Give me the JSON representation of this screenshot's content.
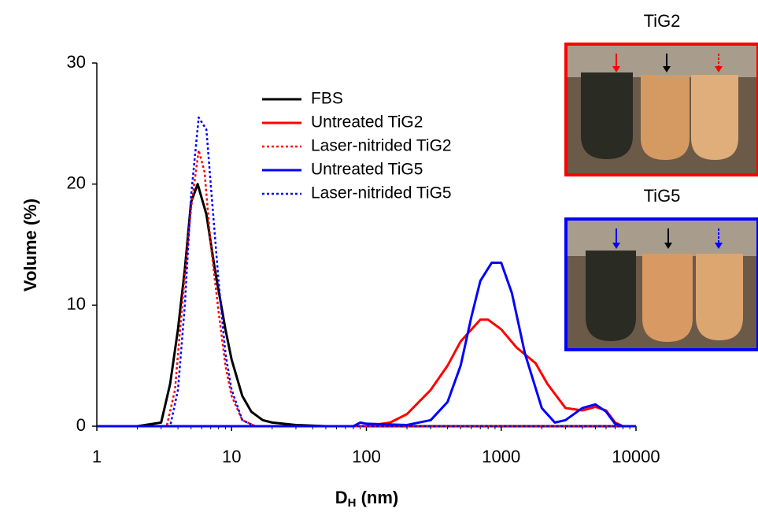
{
  "chart_data": {
    "type": "line",
    "x_label": [
      "D",
      "H",
      " (nm)"
    ],
    "y_label": "Volume (%)",
    "xscale": "log",
    "xlim": [
      1,
      10000
    ],
    "xticks": [
      1,
      10,
      100,
      1000,
      10000
    ],
    "ylim": [
      0,
      30
    ],
    "yticks": [
      0,
      10,
      20,
      30
    ],
    "legend": "top",
    "series": [
      {
        "name": "FBS",
        "color": "#000000",
        "dash": false,
        "x": [
          1,
          2,
          3,
          3.5,
          4,
          4.5,
          5,
          5.6,
          6.5,
          7.5,
          9,
          10,
          12,
          14,
          17,
          20,
          30,
          50,
          100,
          10000
        ],
        "values": [
          0,
          0,
          0.3,
          3.5,
          8,
          13,
          18.5,
          20,
          17.5,
          13,
          8,
          5.5,
          2.5,
          1.2,
          0.5,
          0.3,
          0.1,
          0,
          0,
          0
        ]
      },
      {
        "name": "Untreated TiG2",
        "color": "#ff0000",
        "dash": false,
        "x": [
          1,
          100,
          150,
          200,
          300,
          400,
          500,
          700,
          800,
          1000,
          1300,
          1800,
          2200,
          3000,
          4000,
          5000,
          6000,
          7000,
          8000,
          10000
        ],
        "values": [
          0,
          0,
          0.3,
          1,
          3,
          5,
          7,
          8.8,
          8.8,
          8,
          6.5,
          5.2,
          3.5,
          1.5,
          1.3,
          1.6,
          1.3,
          0.3,
          0,
          0
        ]
      },
      {
        "name": "Laser-nitrided TiG2",
        "color": "#ff0000",
        "dash": true,
        "x": [
          1,
          3.3,
          3.8,
          4.3,
          5,
          5.7,
          6.3,
          7,
          8,
          9,
          10,
          12,
          15,
          10000
        ],
        "values": [
          0,
          0,
          3,
          10,
          18,
          22.8,
          21,
          15,
          9.5,
          5,
          2.5,
          0.5,
          0,
          0
        ]
      },
      {
        "name": "Untreated TiG5",
        "color": "#0000ff",
        "dash": false,
        "x": [
          1,
          80,
          90,
          100,
          200,
          300,
          400,
          500,
          600,
          700,
          850,
          1000,
          1200,
          1500,
          2000,
          2500,
          3000,
          4000,
          5000,
          6000,
          7000,
          8000,
          10000
        ],
        "values": [
          0,
          0,
          0.3,
          0.2,
          0.1,
          0.5,
          2,
          5,
          9,
          12,
          13.5,
          13.5,
          11,
          6,
          1.5,
          0.3,
          0.5,
          1.5,
          1.8,
          1.2,
          0.2,
          0,
          0
        ]
      },
      {
        "name": "Laser-nitrided TiG5",
        "color": "#0000ff",
        "dash": true,
        "x": [
          1,
          3.5,
          4,
          4.5,
          5,
          5.7,
          6.5,
          7,
          8,
          9,
          10,
          12,
          15,
          10000
        ],
        "values": [
          0,
          0,
          3,
          10,
          19,
          25.5,
          24.5,
          20,
          12,
          6,
          3,
          0.5,
          0,
          0
        ]
      }
    ],
    "insets": [
      {
        "title": "TiG2",
        "color": "#ff0000"
      },
      {
        "title": "TiG5",
        "color": "#0000ff"
      }
    ]
  }
}
